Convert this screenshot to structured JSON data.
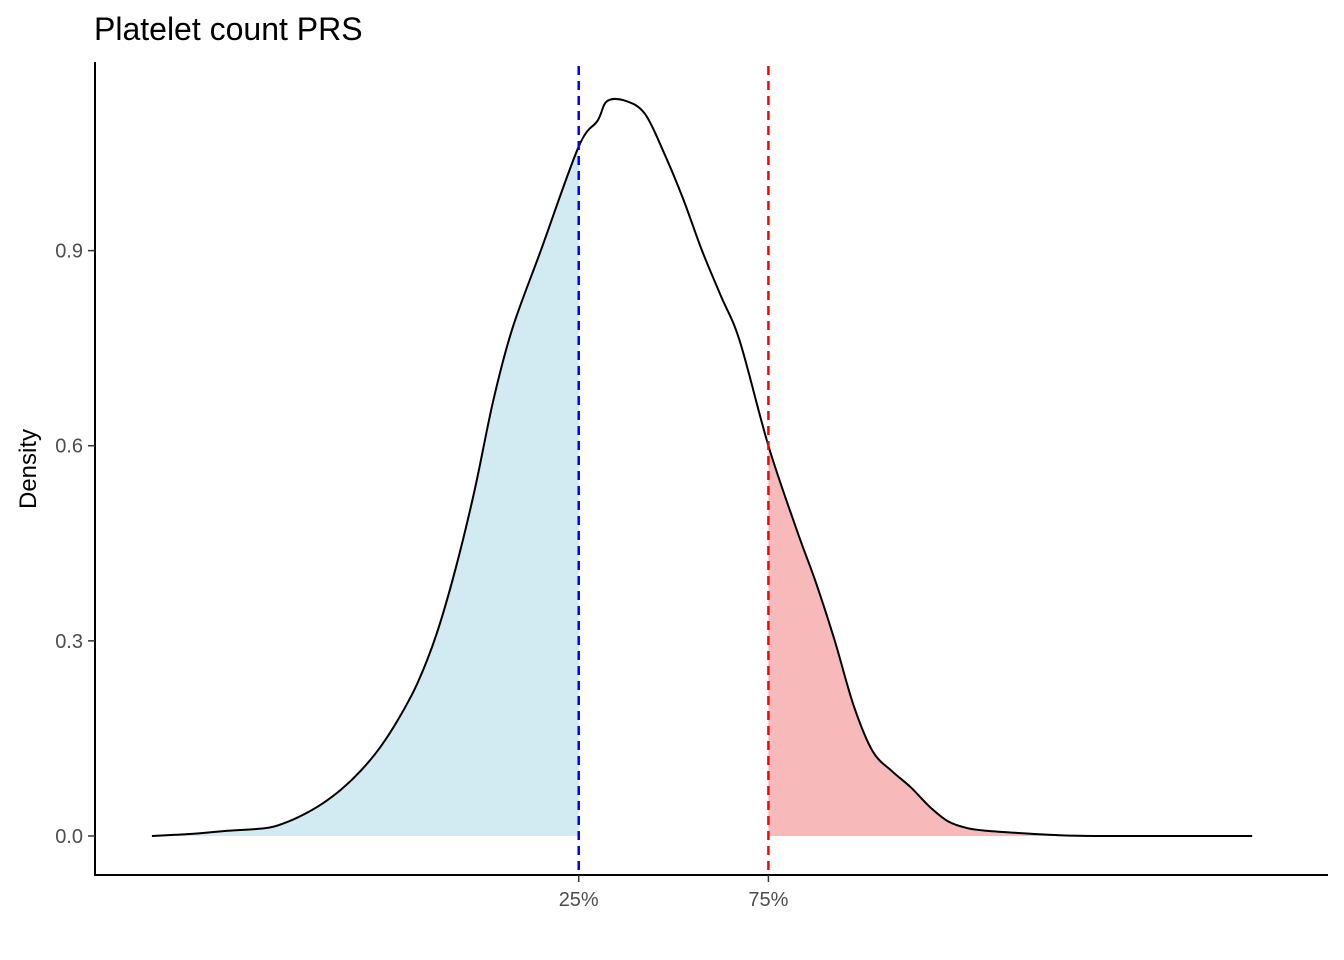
{
  "chart_data": {
    "type": "area",
    "title": "Platelet count PRS",
    "xlabel": "",
    "ylabel": "Density",
    "ylim": [
      -0.06,
      1.19
    ],
    "yticks": [
      0.0,
      0.3,
      0.6,
      0.9
    ],
    "ytick_labels": [
      "0.0",
      "0.3",
      "0.6",
      "0.9"
    ],
    "xlim": [
      -3.1,
      3.4
    ],
    "grid": false,
    "legend": "none",
    "density_curve": {
      "x": [
        -2.8,
        -2.6,
        -2.4,
        -2.2,
        -2.1,
        -2.0,
        -1.9,
        -1.8,
        -1.7,
        -1.6,
        -1.5,
        -1.4,
        -1.3,
        -1.2,
        -1.1,
        -1.0,
        -0.9,
        -0.75,
        -0.55,
        -0.45,
        -0.4,
        -0.3,
        -0.2,
        -0.1,
        0.0,
        0.1,
        0.2,
        0.3,
        0.45,
        0.6,
        0.7,
        0.8,
        0.9,
        1.0,
        1.1,
        1.2,
        1.3,
        1.4,
        1.5,
        1.6,
        1.8,
        2.0,
        2.2,
        2.4,
        2.6,
        2.8,
        3.0
      ],
      "y": [
        0.0,
        0.003,
        0.008,
        0.012,
        0.02,
        0.033,
        0.05,
        0.072,
        0.1,
        0.135,
        0.18,
        0.235,
        0.31,
        0.41,
        0.53,
        0.67,
        0.78,
        0.9,
        1.06,
        1.1,
        1.13,
        1.13,
        1.11,
        1.05,
        0.98,
        0.9,
        0.83,
        0.76,
        0.6,
        0.47,
        0.39,
        0.3,
        0.2,
        0.13,
        0.1,
        0.075,
        0.045,
        0.022,
        0.012,
        0.008,
        0.004,
        0.001,
        0.0,
        0.0,
        0.0,
        0.0,
        0.0
      ],
      "line_color": "#000000"
    },
    "quantile_lines": [
      {
        "label": "25%",
        "x": -0.55,
        "color": "#0000ff"
      },
      {
        "label": "75%",
        "x": 0.45,
        "color": "#ff0000"
      }
    ],
    "fills": {
      "lower_tail_color": "#add8e6",
      "upper_tail_color": "#f08080",
      "fill_opacity": 0.55
    }
  }
}
